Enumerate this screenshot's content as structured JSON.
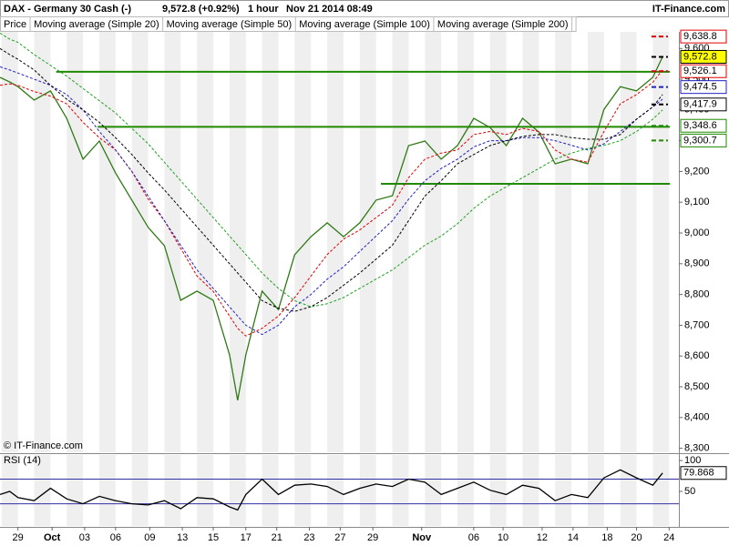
{
  "header": {
    "title": "DAX - Germany 30 Cash (-)",
    "quote": "9,572.8 (+0.92%)",
    "interval": "1 hour",
    "timestamp": "Nov 21 2014 08:49",
    "brand": "IT-Finance.com"
  },
  "chart_data": [
    {
      "type": "line",
      "annotation": "© IT-Finance.com",
      "x": [
        -1.1,
        -0.5,
        0,
        1,
        2,
        3,
        4,
        5,
        6,
        7,
        8,
        9,
        10,
        11,
        12,
        13,
        13.5,
        14,
        15,
        16,
        17,
        18,
        19,
        20,
        21,
        22,
        23,
        24,
        25,
        26,
        27,
        28,
        29,
        30,
        31,
        32,
        33,
        34,
        35,
        36,
        37,
        38,
        39,
        39.6
      ],
      "series": [
        {
          "name": "Price",
          "color": "#2f7a14",
          "dash": false,
          "values": [
            9506,
            9491,
            9476,
            9432,
            9462,
            9373,
            9240,
            9299,
            9195,
            9107,
            9018,
            8959,
            8781,
            8811,
            8781,
            8604,
            8456,
            8604,
            8811,
            8751,
            8929,
            8988,
            9033,
            8988,
            9033,
            9107,
            9121,
            9284,
            9299,
            9240,
            9284,
            9373,
            9343,
            9284,
            9373,
            9328,
            9225,
            9240,
            9225,
            9402,
            9476,
            9462,
            9506,
            9572.8
          ]
        },
        {
          "name": "Moving average (Simple 20)",
          "color": "#e00000",
          "dash": true,
          "values": [
            9480,
            9485,
            9480,
            9460,
            9445,
            9420,
            9360,
            9310,
            9270,
            9200,
            9110,
            9040,
            8950,
            8860,
            8810,
            8730,
            8690,
            8665,
            8690,
            8730,
            8790,
            8860,
            8930,
            8980,
            9010,
            9050,
            9090,
            9180,
            9240,
            9260,
            9270,
            9320,
            9330,
            9320,
            9340,
            9330,
            9270,
            9240,
            9230,
            9330,
            9420,
            9450,
            9490,
            9530
          ]
        },
        {
          "name": "Moving average (Simple 50)",
          "color": "#2020c0",
          "dash": true,
          "values": [
            9540,
            9530,
            9520,
            9500,
            9480,
            9450,
            9400,
            9330,
            9270,
            9200,
            9120,
            9040,
            8960,
            8880,
            8820,
            8760,
            8730,
            8700,
            8670,
            8700,
            8760,
            8800,
            8850,
            8890,
            8940,
            8990,
            9040,
            9110,
            9170,
            9210,
            9240,
            9280,
            9300,
            9300,
            9310,
            9310,
            9300,
            9285,
            9270,
            9290,
            9330,
            9370,
            9410,
            9435
          ]
        },
        {
          "name": "Moving average (Simple 100)",
          "color": "#000000",
          "dash": true,
          "values": [
            9600,
            9580,
            9565,
            9530,
            9480,
            9435,
            9400,
            9360,
            9310,
            9255,
            9195,
            9140,
            9080,
            9020,
            8960,
            8900,
            8870,
            8840,
            8780,
            8755,
            8745,
            8760,
            8790,
            8830,
            8870,
            8915,
            8960,
            9040,
            9120,
            9170,
            9225,
            9255,
            9284,
            9300,
            9314,
            9320,
            9320,
            9310,
            9305,
            9305,
            9320,
            9370,
            9410,
            9450
          ]
        },
        {
          "name": "Moving average (Simple 200)",
          "color": "#20a020",
          "dash": true,
          "values": [
            9650,
            9630,
            9620,
            9580,
            9545,
            9510,
            9470,
            9430,
            9390,
            9340,
            9290,
            9230,
            9170,
            9110,
            9050,
            8990,
            8960,
            8930,
            8870,
            8820,
            8780,
            8760,
            8770,
            8790,
            8820,
            8850,
            8880,
            8920,
            8960,
            8990,
            9030,
            9080,
            9120,
            9150,
            9180,
            9210,
            9240,
            9260,
            9275,
            9285,
            9300,
            9330,
            9370,
            9400
          ]
        }
      ],
      "xlim": [
        -1.1,
        40.6
      ],
      "ylim": [
        8287,
        9654
      ],
      "yticks": [
        {
          "value": 8300,
          "label": "8,300"
        },
        {
          "value": 8400,
          "label": "8,400"
        },
        {
          "value": 8500,
          "label": "8,500"
        },
        {
          "value": 8600,
          "label": "8,600"
        },
        {
          "value": 8700,
          "label": "8,700"
        },
        {
          "value": 8800,
          "label": "8,800"
        },
        {
          "value": 8900,
          "label": "8,900"
        },
        {
          "value": 9000,
          "label": "9,000"
        },
        {
          "value": 9100,
          "label": "9,100"
        },
        {
          "value": 9200,
          "label": "9,200"
        },
        {
          "value": 9300,
          "label": "9,300"
        },
        {
          "value": 9400,
          "label": "9,400"
        },
        {
          "value": 9500,
          "label": "9,500"
        },
        {
          "value": 9600,
          "label": "9,600"
        }
      ],
      "levels": [
        {
          "value": 9524,
          "x": [
            2.35,
            40.05
          ],
          "color": "#1f8a00"
        },
        {
          "value": 9345,
          "x": [
            4.9,
            40.05
          ],
          "color": "#1f8a00"
        },
        {
          "value": 9160,
          "x": [
            22.3,
            40.05
          ],
          "color": "#1f8a00"
        }
      ],
      "price_labels": [
        {
          "value": 9638.8,
          "label": "9,638.8",
          "color": "#e00000",
          "background": "#ffffff"
        },
        {
          "value": 9572.8,
          "label": "9,572.8",
          "color": "#000000",
          "background": "#ffff00"
        },
        {
          "value": 9526.1,
          "label": "9,526.1",
          "color": "#e00000",
          "background": "#ffffff"
        },
        {
          "value": 9474.5,
          "label": "9,474.5",
          "color": "#2020c0",
          "background": "#ffffff"
        },
        {
          "value": 9417.9,
          "label": "9,417.9",
          "color": "#000000",
          "background": "#ffffff"
        },
        {
          "value": 9348.6,
          "label": "9,348.6",
          "color": "#1f8a00",
          "background": "#ffffff"
        },
        {
          "value": 9300.7,
          "label": "9,300.7",
          "color": "#1f8a00",
          "background": "#ffffff"
        }
      ]
    },
    {
      "type": "line",
      "title": "RSI (14)",
      "x": [
        -1.1,
        -0.5,
        0,
        1,
        2,
        3,
        4,
        5,
        6,
        7,
        8,
        9,
        10,
        11,
        12,
        13,
        13.5,
        14,
        15,
        16,
        17,
        18,
        19,
        20,
        21,
        22,
        23,
        24,
        25,
        26,
        27,
        28,
        29,
        30,
        31,
        32,
        33,
        34,
        35,
        36,
        37,
        38,
        39,
        39.6
      ],
      "series": [
        {
          "color": "#000000",
          "dash": false,
          "values": [
            45,
            50,
            40,
            35,
            55,
            38,
            30,
            42,
            35,
            30,
            28,
            35,
            22,
            40,
            38,
            25,
            20,
            45,
            70,
            45,
            60,
            62,
            58,
            45,
            55,
            62,
            58,
            70,
            65,
            45,
            55,
            65,
            52,
            45,
            60,
            55,
            35,
            45,
            40,
            72,
            85,
            72,
            60,
            79.868
          ]
        }
      ],
      "last_label": "79.868",
      "xlim": [
        -1.1,
        40.6
      ],
      "ylim": [
        -6,
        109
      ],
      "yticks": [
        50,
        100
      ],
      "bands": [
        30,
        70
      ],
      "band_color": "#3030a0",
      "xticks": [
        {
          "value": 0,
          "label": "29"
        },
        {
          "value": 2.1,
          "label": "Oct"
        },
        {
          "value": 4.1,
          "label": "03"
        },
        {
          "value": 6.0,
          "label": "06"
        },
        {
          "value": 8.1,
          "label": "09"
        },
        {
          "value": 10.1,
          "label": "13"
        },
        {
          "value": 12.0,
          "label": "15"
        },
        {
          "value": 14.0,
          "label": "17"
        },
        {
          "value": 15.9,
          "label": "21"
        },
        {
          "value": 17.9,
          "label": "23"
        },
        {
          "value": 19.8,
          "label": "27"
        },
        {
          "value": 21.8,
          "label": "29"
        },
        {
          "value": 24.8,
          "label": "Nov"
        },
        {
          "value": 28.0,
          "label": "06"
        },
        {
          "value": 29.8,
          "label": "10"
        },
        {
          "value": 32.2,
          "label": "12"
        },
        {
          "value": 34.1,
          "label": "14"
        },
        {
          "value": 36.2,
          "label": "18"
        },
        {
          "value": 38.0,
          "label": "20"
        },
        {
          "value": 40.0,
          "label": "24"
        }
      ]
    }
  ]
}
